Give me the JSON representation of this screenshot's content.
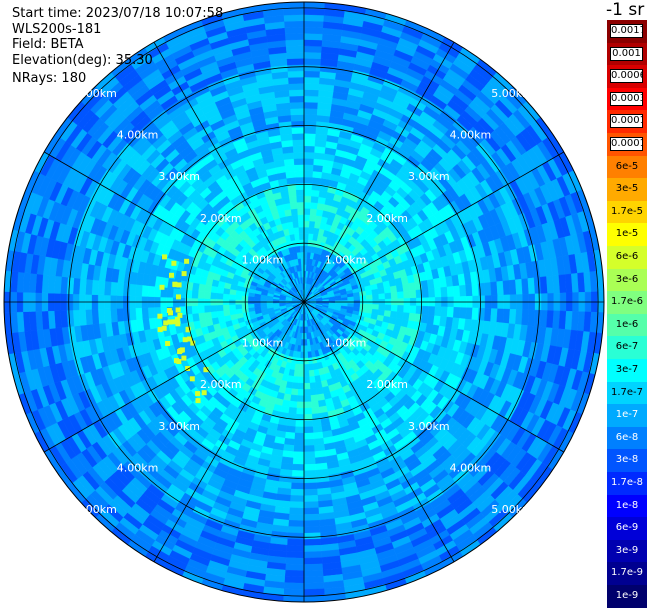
{
  "header": {
    "start_time": "Start time: 2023/07/18 10:07:58",
    "instrument": "WLS200s-181",
    "field": "Field: BETA",
    "elevation": "Elevation(deg): 35.30",
    "nrays": "NRays: 180"
  },
  "chart_data": {
    "type": "heatmap",
    "projection": "polar",
    "range_unit": "km",
    "max_range_km": 5.1,
    "ring_labels_km": [
      "1.00km",
      "2.00km",
      "3.00km",
      "4.00km",
      "5.00km"
    ],
    "radials_deg": [
      0,
      30,
      60,
      90,
      120,
      150,
      180,
      210,
      240,
      270,
      300,
      330
    ],
    "colorbar": {
      "unit_label": "-1 sr",
      "levels": [
        "0.0017",
        "0.001",
        "0.0006",
        "0.0003",
        "0.00017",
        "0.0001",
        "6e-5",
        "3e-5",
        "1.7e-5",
        "1e-5",
        "6e-6",
        "3e-6",
        "1.7e-6",
        "1e-6",
        "6e-7",
        "3e-7",
        "1.7e-7",
        "1e-7",
        "6e-8",
        "3e-8",
        "1.7e-8",
        "1e-8",
        "6e-9",
        "3e-9",
        "1.7e-9",
        "1e-9"
      ],
      "colors": [
        "#8b0000",
        "#b00000",
        "#d80000",
        "#ff0000",
        "#ff2a00",
        "#ff5500",
        "#ff8000",
        "#ffaa00",
        "#ffd400",
        "#ffff00",
        "#d5ff2a",
        "#aaff55",
        "#80ff80",
        "#55ffaa",
        "#2affd5",
        "#00ffff",
        "#00d4ff",
        "#00aaff",
        "#0080ff",
        "#0055ff",
        "#002aff",
        "#0000ff",
        "#0000d8",
        "#0000b0",
        "#000090",
        "#00006c"
      ]
    },
    "field_profile": {
      "range_km": [
        0.0,
        0.5,
        1.0,
        1.5,
        2.0,
        2.5,
        3.0,
        3.5,
        4.0,
        4.5,
        5.0
      ],
      "color_level": [
        "1e-7",
        "1e-7",
        "3e-7",
        "3e-7",
        "1.7e-7",
        "1.7e-7",
        "1e-7",
        "1e-7",
        "6e-8",
        "6e-8",
        "1e-7"
      ]
    },
    "enhanced_band": {
      "color_level": "6e-6",
      "range_km": [
        2.0,
        2.5
      ],
      "azimuth_deg": [
        225,
        290
      ]
    }
  }
}
